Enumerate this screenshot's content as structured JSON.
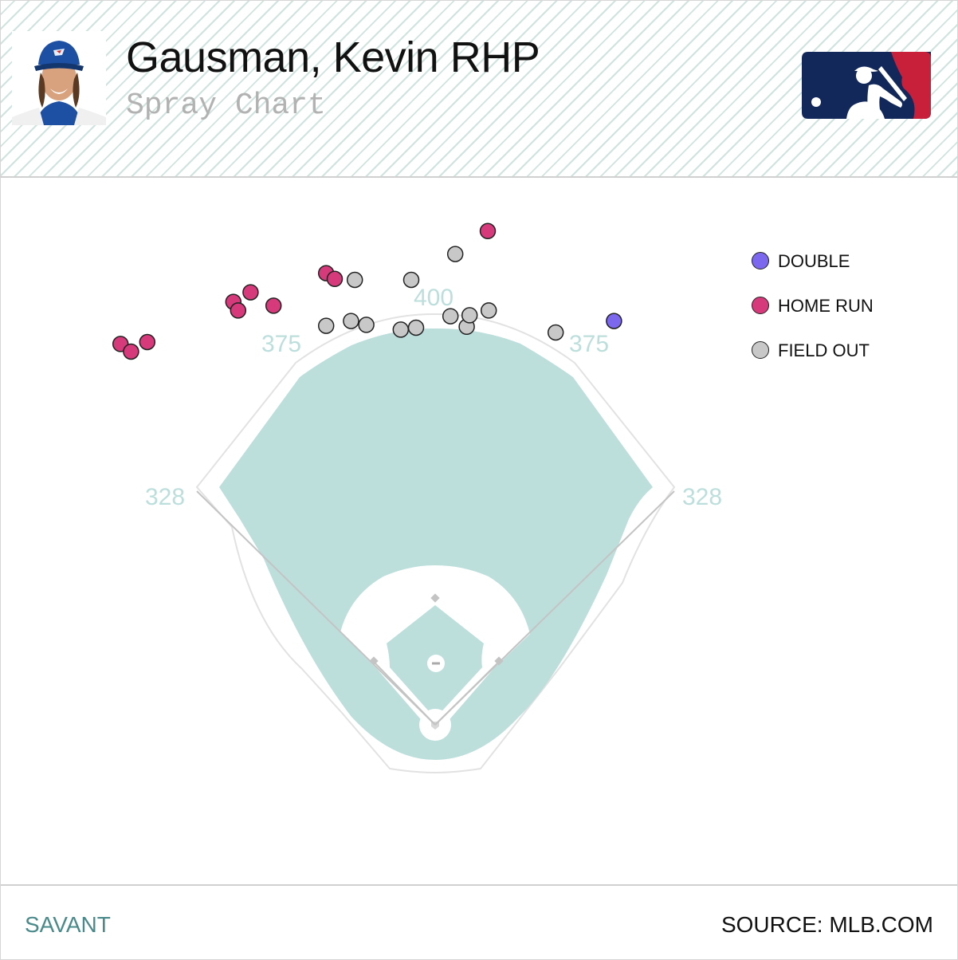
{
  "header": {
    "title": "Gausman, Kevin RHP",
    "subtitle": "Spray Chart"
  },
  "footer": {
    "left": "SAVANT",
    "right": "SOURCE: MLB.COM"
  },
  "colors": {
    "field": "#bcdfdc",
    "double": "#7b68ee",
    "home_run": "#d63a7a",
    "field_out": "#c8c8c8",
    "distance_label": "#bcdfdc"
  },
  "icons": {
    "avatar": "player-headshot-icon",
    "logo": "mlb-logo-icon"
  },
  "chart_data": {
    "type": "scatter",
    "title": "Spray Chart",
    "distances": {
      "left_line": "328",
      "left_center": "375",
      "center": "400",
      "right_center": "375",
      "right_line": "328"
    },
    "legend": [
      {
        "key": "double",
        "label": "DOUBLE",
        "color": "#7b68ee"
      },
      {
        "key": "home_run",
        "label": "HOME RUN",
        "color": "#d63a7a"
      },
      {
        "key": "field_out",
        "label": "FIELD OUT",
        "color": "#c8c8c8"
      }
    ],
    "legend_position": "top-right",
    "points": [
      {
        "result": "home_run",
        "x": -329,
        "y": 398
      },
      {
        "result": "home_run",
        "x": -318,
        "y": 390
      },
      {
        "result": "home_run",
        "x": -301,
        "y": 400
      },
      {
        "result": "home_run",
        "x": -211,
        "y": 442
      },
      {
        "result": "home_run",
        "x": -206,
        "y": 433
      },
      {
        "result": "home_run",
        "x": -193,
        "y": 452
      },
      {
        "result": "home_run",
        "x": -169,
        "y": 438
      },
      {
        "result": "home_run",
        "x": -114,
        "y": 472
      },
      {
        "result": "home_run",
        "x": -105,
        "y": 466
      },
      {
        "result": "home_run",
        "x": 55,
        "y": 516
      },
      {
        "result": "field_out",
        "x": -84,
        "y": 465
      },
      {
        "result": "field_out",
        "x": -114,
        "y": 417
      },
      {
        "result": "field_out",
        "x": -88,
        "y": 422
      },
      {
        "result": "field_out",
        "x": -72,
        "y": 418
      },
      {
        "result": "field_out",
        "x": -25,
        "y": 465
      },
      {
        "result": "field_out",
        "x": -36,
        "y": 413
      },
      {
        "result": "field_out",
        "x": -20,
        "y": 415
      },
      {
        "result": "field_out",
        "x": 16,
        "y": 427
      },
      {
        "result": "field_out",
        "x": 21,
        "y": 492
      },
      {
        "result": "field_out",
        "x": 33,
        "y": 416
      },
      {
        "result": "field_out",
        "x": 36,
        "y": 428
      },
      {
        "result": "field_out",
        "x": 56,
        "y": 433
      },
      {
        "result": "field_out",
        "x": 126,
        "y": 410
      },
      {
        "result": "double",
        "x": 187,
        "y": 422
      }
    ]
  }
}
